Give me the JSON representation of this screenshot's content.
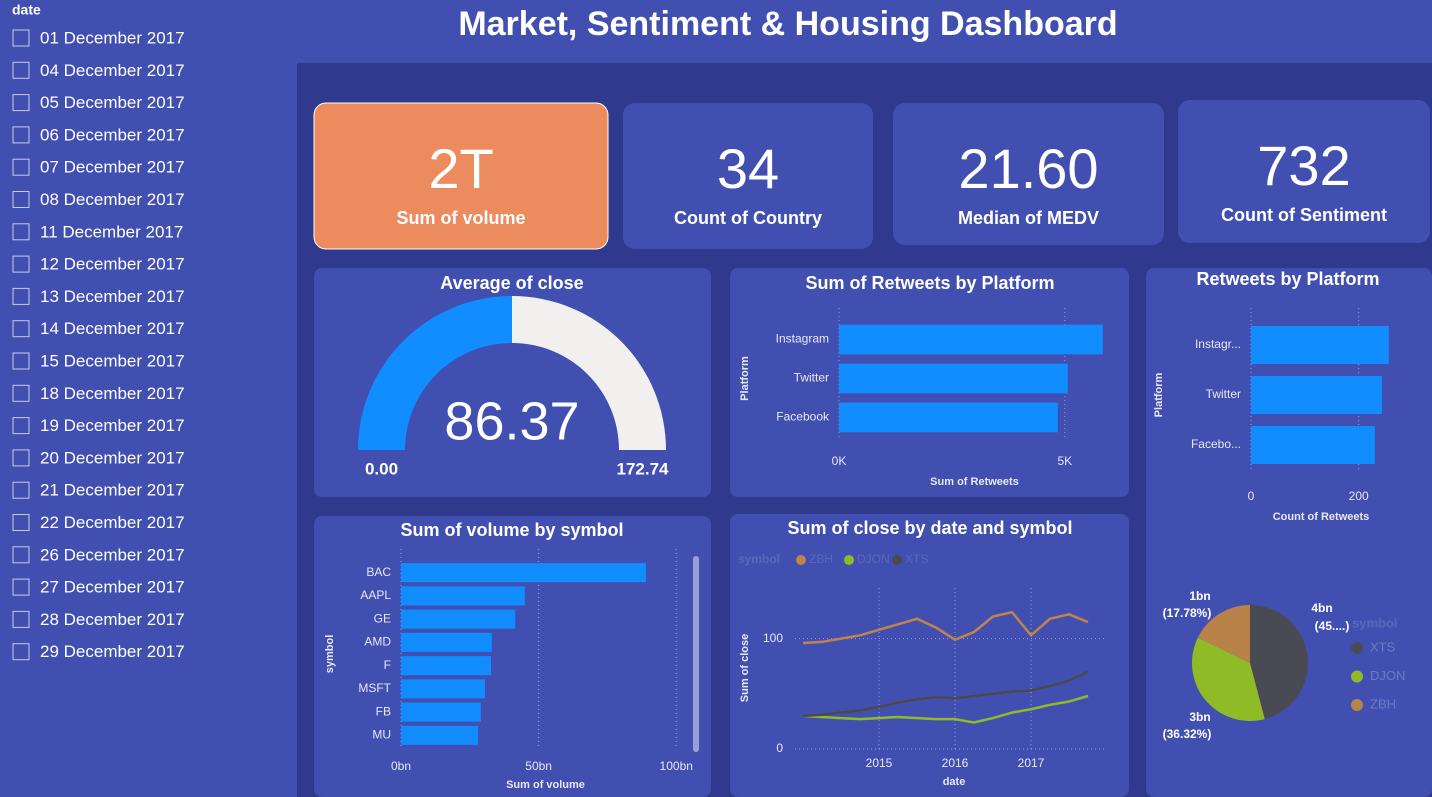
{
  "title": "Market, Sentiment & Housing Dashboard",
  "slicer": {
    "label": "date",
    "items": [
      "01 December 2017",
      "04 December 2017",
      "05 December 2017",
      "06 December 2017",
      "07 December 2017",
      "08 December 2017",
      "11 December 2017",
      "12 December 2017",
      "13 December 2017",
      "14 December 2017",
      "15 December 2017",
      "18 December 2017",
      "19 December 2017",
      "20 December 2017",
      "21 December 2017",
      "22 December 2017",
      "26 December 2017",
      "27 December 2017",
      "28 December 2017",
      "29 December 2017"
    ]
  },
  "cards": [
    {
      "value": "2T",
      "label": "Sum of volume"
    },
    {
      "value": "34",
      "label": "Count of Country"
    },
    {
      "value": "21.60",
      "label": "Median of MEDV"
    },
    {
      "value": "732",
      "label": "Count of Sentiment"
    }
  ],
  "chart_data": [
    {
      "type": "gauge",
      "title": "Average of close",
      "value": 86.37,
      "ylim": [
        0,
        172.74
      ],
      "yticks": [
        {
          "value": 0,
          "label": "0.00"
        },
        172.74
      ],
      "colors": [
        "#118dff",
        "#f1f0ef"
      ]
    },
    {
      "type": "bar",
      "orientation": "horizontal",
      "title": "Sum of Retweets by Platform",
      "categories": [
        "Instagram",
        "Twitter",
        "Facebook"
      ],
      "values": [
        5840,
        5065,
        4845
      ],
      "color": "#118dff",
      "xlim": [
        0,
        6000
      ],
      "xticks": [
        {
          "value": 0,
          "label": "0K"
        },
        {
          "value": 5000,
          "label": "5K"
        }
      ],
      "x_label": "Sum of Retweets",
      "y_label": "Platform",
      "grid": true
    },
    {
      "type": "bar",
      "orientation": "horizontal",
      "title": "Retweets by Platform",
      "categories": [
        "Instagr...",
        "Twitter",
        "Facebo..."
      ],
      "values": [
        256,
        243,
        230
      ],
      "color": "#118dff",
      "xlim": [
        0,
        260
      ],
      "xticks": [
        0,
        200
      ],
      "x_label": "Count of Retweets",
      "y_label": "Platform",
      "grid": true
    },
    {
      "type": "bar",
      "orientation": "horizontal",
      "title": "Sum of volume by symbol",
      "categories": [
        "BAC",
        "AAPL",
        "GE",
        "AMD",
        "F",
        "MSFT",
        "FB",
        "MU"
      ],
      "values": [
        89,
        45,
        41.5,
        33,
        32.7,
        30.5,
        29,
        28
      ],
      "color": "#118dff",
      "xlim": [
        0,
        105
      ],
      "xticks": [
        {
          "value": 0,
          "label": "0bn"
        },
        {
          "value": 50,
          "label": "50bn"
        },
        {
          "value": 100,
          "label": "100bn"
        }
      ],
      "x_label": "Sum of volume",
      "y_label": "symbol",
      "grid": true
    },
    {
      "type": "line",
      "title": "Sum of close by date and symbol",
      "legend_title": "symbol",
      "x_label": "date",
      "y_label": "Sum of close",
      "x": [
        2014.0,
        2014.25,
        2014.5,
        2014.75,
        2015.0,
        2015.25,
        2015.5,
        2015.75,
        2016.0,
        2016.25,
        2016.5,
        2016.75,
        2017.0,
        2017.25,
        2017.5,
        2017.75
      ],
      "series": [
        {
          "name": "ZBH",
          "color": "#c0834b",
          "values": [
            96,
            97,
            100,
            103,
            108,
            113,
            118,
            110,
            99,
            106,
            120,
            124,
            103,
            118,
            122,
            115
          ]
        },
        {
          "name": "DJON",
          "color": "#8fbc26",
          "values": [
            30,
            29,
            28,
            27,
            28,
            29,
            28,
            27,
            27,
            24,
            28,
            33,
            36,
            40,
            43,
            48
          ]
        },
        {
          "name": "XTS",
          "color": "#4a4a4a",
          "values": [
            30,
            31,
            33,
            35,
            38,
            42,
            45,
            47,
            46,
            48,
            50,
            52,
            53,
            57,
            62,
            70
          ]
        }
      ],
      "xlim": [
        2014,
        2018
      ],
      "xticks": [
        2015,
        2016,
        2017
      ],
      "ylim": [
        -10,
        135
      ],
      "yticks": [
        0,
        100
      ],
      "grid": true
    },
    {
      "type": "pie",
      "legend_title": "symbol",
      "categories": [
        "XTS",
        "DJON",
        "ZBH"
      ],
      "colors": [
        "#4a4a55",
        "#8fbc26",
        "#b98249"
      ],
      "values": [
        45.9,
        36.32,
        17.78
      ],
      "value_labels": [
        "(45....)",
        "(36.32%)",
        "(17.78%)"
      ],
      "amount_labels": [
        "4bn",
        "3bn",
        "1bn"
      ]
    }
  ]
}
